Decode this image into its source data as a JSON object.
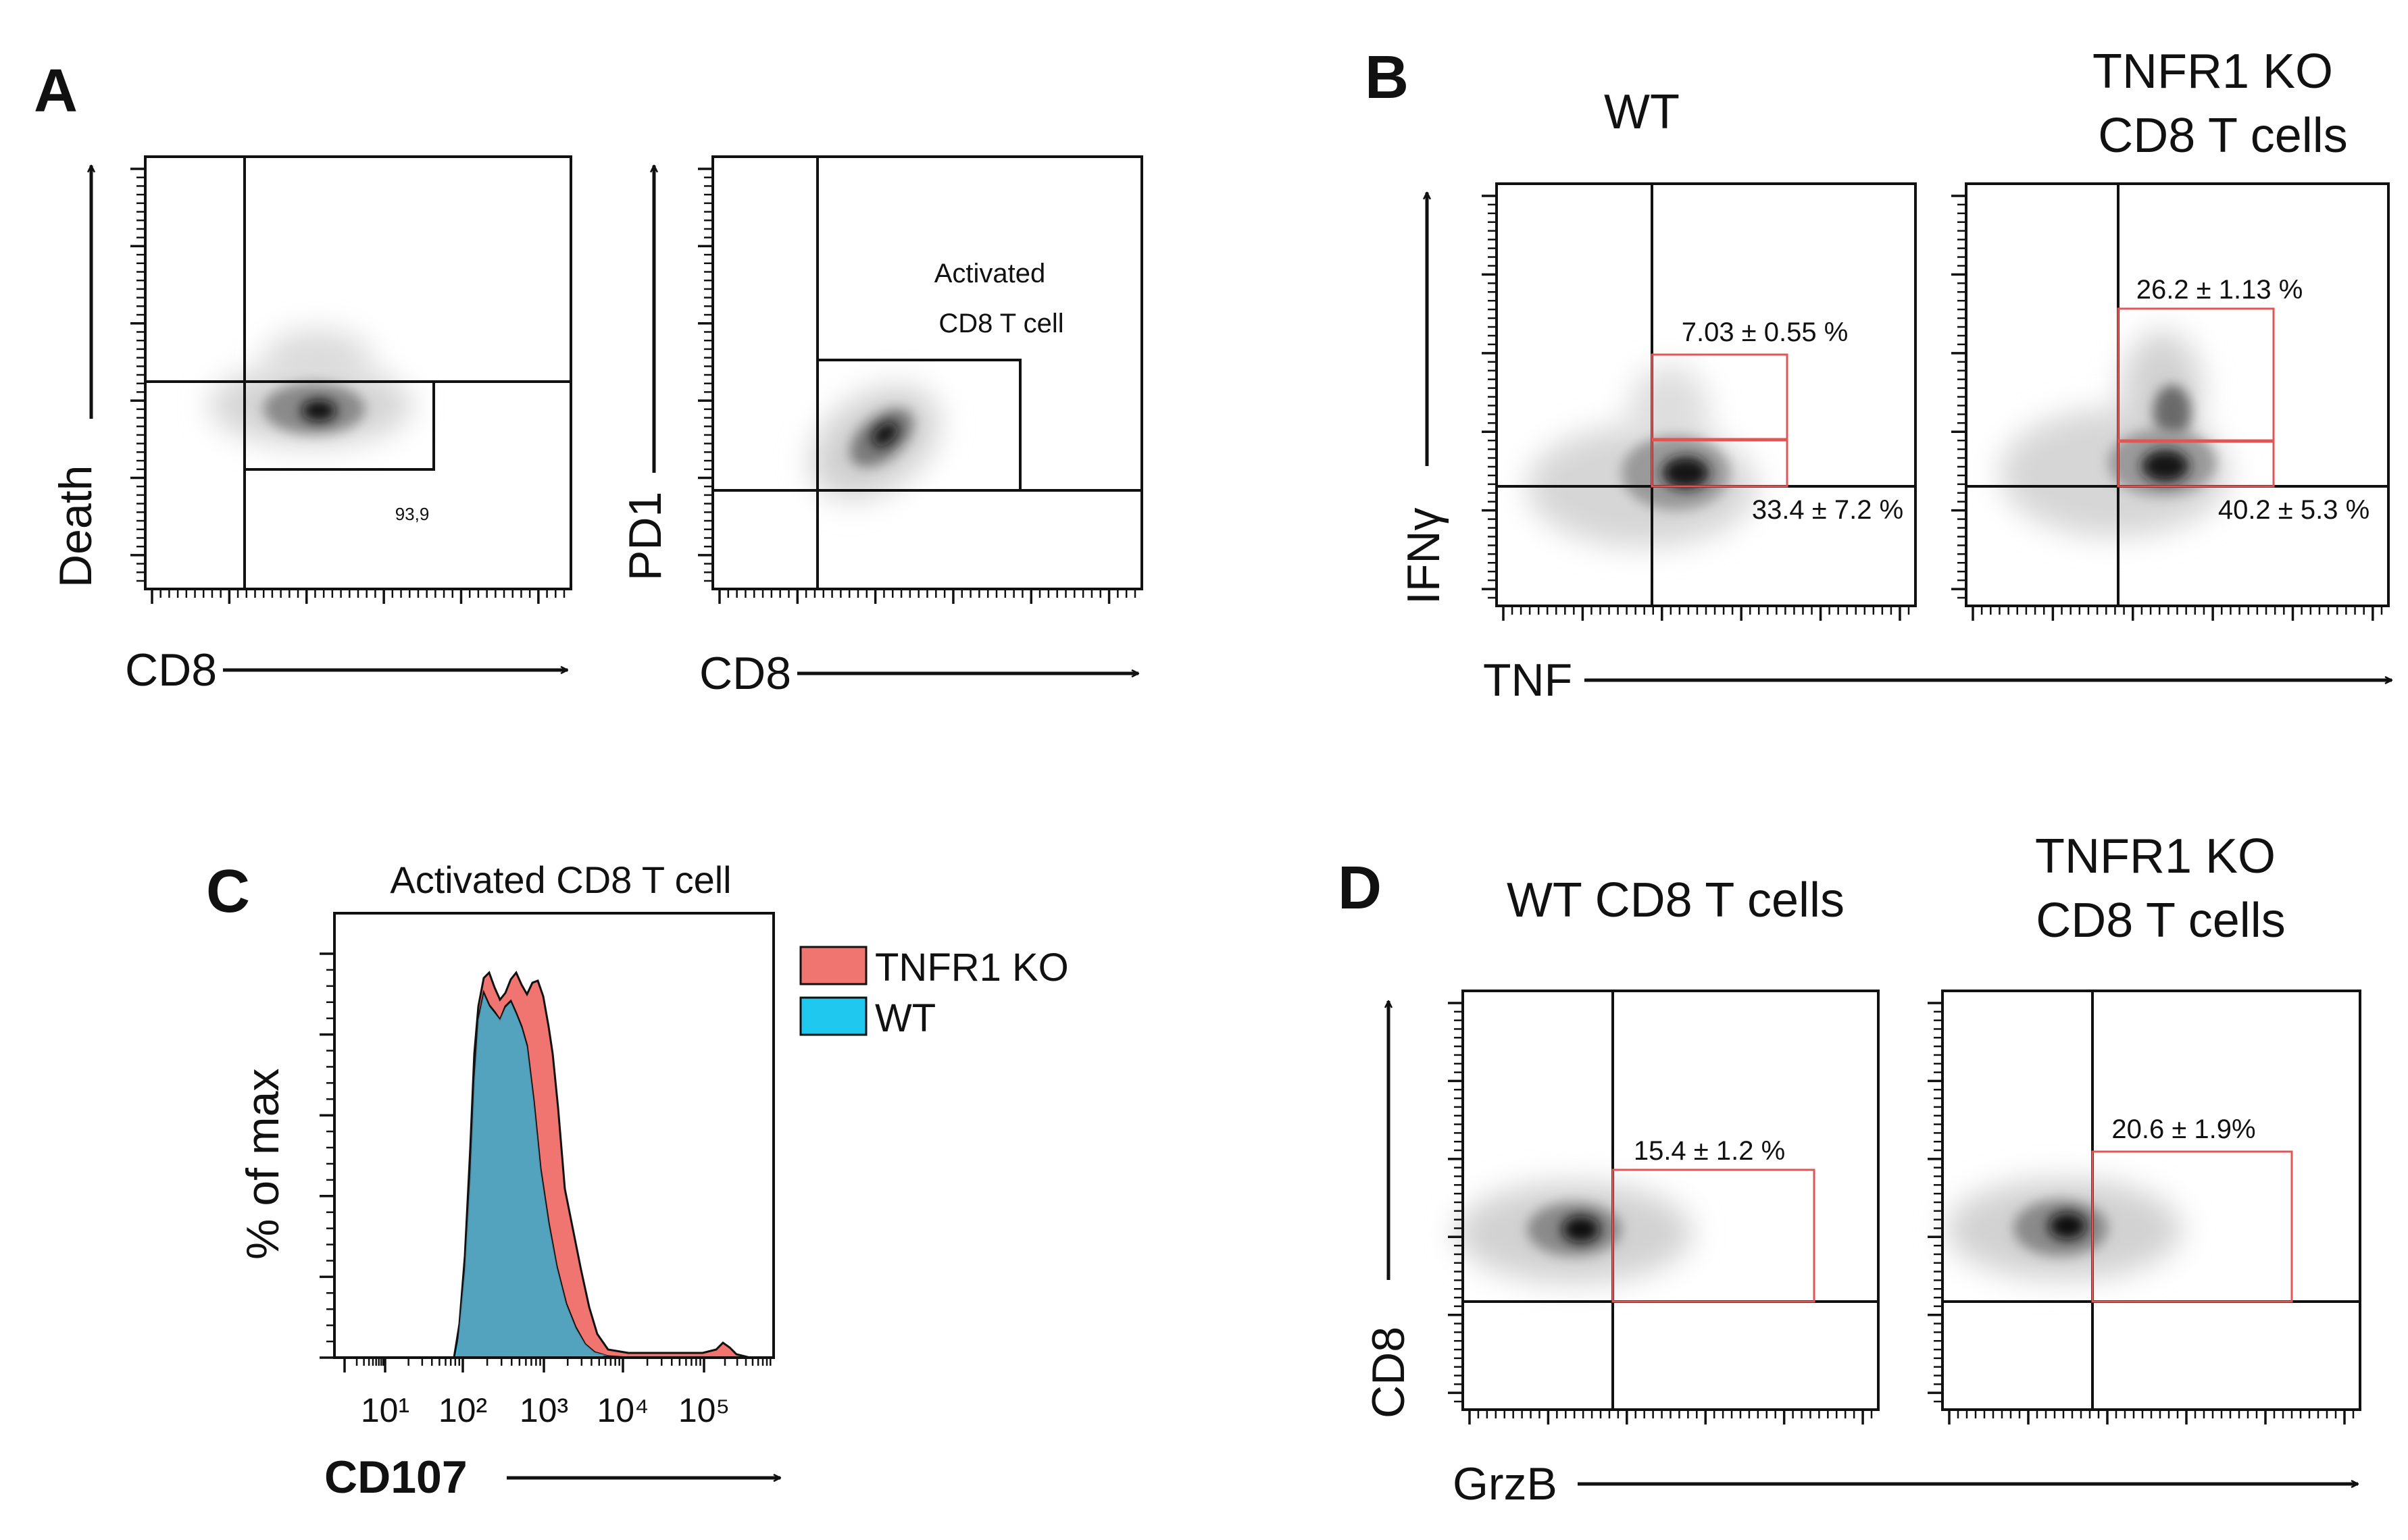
{
  "chart_data": [
    {
      "id": "A1",
      "panel": "A",
      "type": "scatter",
      "xlabel": "CD8",
      "ylabel": "Death",
      "gates": [
        {
          "label": "93,9"
        }
      ]
    },
    {
      "id": "A2",
      "type": "scatter",
      "xlabel": "CD8",
      "ylabel": "PD1",
      "gates": [
        {
          "label": "Activated CD8 T cell"
        }
      ]
    },
    {
      "id": "B",
      "panel": "B",
      "type": "scatter",
      "xlabel": "TNF",
      "ylabel": "IFNγ",
      "series": [
        {
          "name": "WT",
          "gates": [
            {
              "label": "7.03 ± 0.55 %"
            },
            {
              "label": "33.4 ± 7.2 %"
            }
          ]
        },
        {
          "name": "TNFR1 KO CD8 T cells",
          "name_lines": [
            "TNFR1 KO",
            "CD8 T cells"
          ],
          "gates": [
            {
              "label": "26.2 ± 1.13 %"
            },
            {
              "label": "40.2 ± 5.3 %"
            }
          ]
        }
      ]
    },
    {
      "id": "C",
      "panel": "C",
      "type": "area",
      "title": "Activated CD8 T cell",
      "xlabel": "CD107",
      "ylabel": "% of max",
      "x_scale": "log",
      "tick_labels": [
        "10¹",
        "10²",
        "10³",
        "10⁴",
        "10⁵"
      ],
      "series": [
        {
          "name": "TNFR1 KO",
          "color": "#f07470"
        },
        {
          "name": "WT",
          "color": "#1ec8ee"
        }
      ]
    },
    {
      "id": "D",
      "panel": "D",
      "type": "scatter",
      "xlabel": "GrzB",
      "ylabel": "CD8",
      "series": [
        {
          "name": "WT CD8 T cells",
          "gates": [
            {
              "label": "15.4 ± 1.2 %"
            }
          ]
        },
        {
          "name": "TNFR1 KO CD8 T cells",
          "name_lines": [
            "TNFR1 KO",
            "CD8 T cells"
          ],
          "gates": [
            {
              "label": "20.6 ± 1.9%"
            }
          ]
        }
      ]
    }
  ],
  "colors": {
    "gate_red": "#e05555",
    "ko_fill": "#f07470",
    "wt_fill": "#1ec8ee",
    "wt_overlay": "#5a9fb8"
  }
}
